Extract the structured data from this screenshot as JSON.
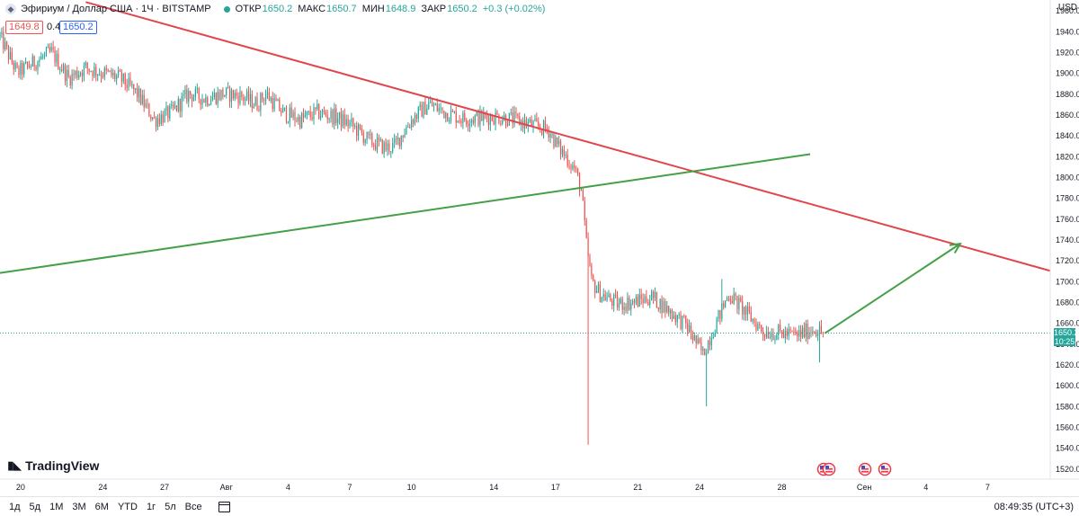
{
  "header": {
    "symbol": "Эфириум / Доллар США · 1Ч · BITSTAMP",
    "open_label": "ОТКР",
    "open": "1650.2",
    "high_label": "МАКС",
    "high": "1650.7",
    "low_label": "МИН",
    "low": "1648.9",
    "close_label": "ЗАКР",
    "close": "1650.2",
    "change": "+0.3 (+0.02%)"
  },
  "trade": {
    "sell": "1649.8",
    "spread": "0.4",
    "buy": "1650.2"
  },
  "currency": "USD",
  "logo_text": "TradingView",
  "last_price": {
    "price": "1650.2",
    "countdown": "10:25"
  },
  "timeframes": [
    "1д",
    "5д",
    "1М",
    "3М",
    "6М",
    "YTD",
    "1г",
    "5л",
    "Все"
  ],
  "clock": "08:49:35 (UTC+3)",
  "colors": {
    "up": "#26a69a",
    "down": "#ef5350",
    "trend_red": "#e0474c",
    "trend_green": "#43a047",
    "price_line": "#26a69a"
  },
  "chart_data": {
    "type": "candlestick",
    "ylim": [
      1510,
      1970
    ],
    "y_ticks": [
      1520,
      1540,
      1560,
      1580,
      1600,
      1620,
      1640,
      1660,
      1680,
      1700,
      1720,
      1740,
      1760,
      1780,
      1800,
      1820,
      1840,
      1860,
      1880,
      1900,
      1920,
      1940,
      1960
    ],
    "x_ticks": [
      {
        "label": "20",
        "idx": 24
      },
      {
        "label": "24",
        "idx": 120
      },
      {
        "label": "27",
        "idx": 192
      },
      {
        "label": "Авг",
        "idx": 264
      },
      {
        "label": "4",
        "idx": 336
      },
      {
        "label": "7",
        "idx": 408
      },
      {
        "label": "10",
        "idx": 480
      },
      {
        "label": "14",
        "idx": 576
      },
      {
        "label": "17",
        "idx": 648
      },
      {
        "label": "21",
        "idx": 744
      },
      {
        "label": "24",
        "idx": 816
      },
      {
        "label": "28",
        "idx": 912
      },
      {
        "label": "Сен",
        "idx": 1008
      },
      {
        "label": "4",
        "idx": 1080
      },
      {
        "label": "7",
        "idx": 1152
      }
    ],
    "x_range": [
      0,
      1225
    ],
    "path": [
      [
        0,
        1935
      ],
      [
        20,
        1900
      ],
      [
        40,
        1910
      ],
      [
        60,
        1920
      ],
      [
        80,
        1895
      ],
      [
        100,
        1905
      ],
      [
        120,
        1900
      ],
      [
        140,
        1895
      ],
      [
        160,
        1880
      ],
      [
        180,
        1855
      ],
      [
        200,
        1862
      ],
      [
        220,
        1880
      ],
      [
        240,
        1875
      ],
      [
        260,
        1880
      ],
      [
        280,
        1878
      ],
      [
        300,
        1870
      ],
      [
        310,
        1880
      ],
      [
        330,
        1862
      ],
      [
        350,
        1855
      ],
      [
        370,
        1862
      ],
      [
        390,
        1858
      ],
      [
        410,
        1850
      ],
      [
        430,
        1835
      ],
      [
        450,
        1828
      ],
      [
        460,
        1830
      ],
      [
        480,
        1855
      ],
      [
        500,
        1870
      ],
      [
        520,
        1862
      ],
      [
        540,
        1856
      ],
      [
        560,
        1857
      ],
      [
        580,
        1858
      ],
      [
        600,
        1855
      ],
      [
        620,
        1850
      ],
      [
        640,
        1845
      ],
      [
        650,
        1830
      ],
      [
        660,
        1820
      ],
      [
        670,
        1808
      ],
      [
        678,
        1788
      ],
      [
        684,
        1735
      ],
      [
        690,
        1700
      ],
      [
        700,
        1688
      ],
      [
        720,
        1678
      ],
      [
        740,
        1680
      ],
      [
        760,
        1685
      ],
      [
        780,
        1672
      ],
      [
        800,
        1658
      ],
      [
        820,
        1630
      ],
      [
        830,
        1650
      ],
      [
        850,
        1688
      ],
      [
        870,
        1670
      ],
      [
        890,
        1652
      ],
      [
        910,
        1650
      ],
      [
        930,
        1648
      ],
      [
        950,
        1655
      ],
      [
        960,
        1650
      ]
    ],
    "spikes": [
      {
        "idx": 686,
        "low": 1543
      },
      {
        "idx": 824,
        "low": 1580
      },
      {
        "idx": 956,
        "low": 1622
      },
      {
        "idx": 843,
        "high": 1702
      }
    ],
    "trendlines": [
      {
        "color": "red",
        "from": [
          100,
          1968
        ],
        "to": [
          1225,
          1710
        ]
      },
      {
        "color": "green",
        "from": [
          0,
          1708
        ],
        "to": [
          945,
          1822
        ]
      }
    ],
    "arrow": {
      "from": [
        962,
        1650
      ],
      "to": [
        1120,
        1736
      ]
    },
    "last_price": 1650.2
  }
}
